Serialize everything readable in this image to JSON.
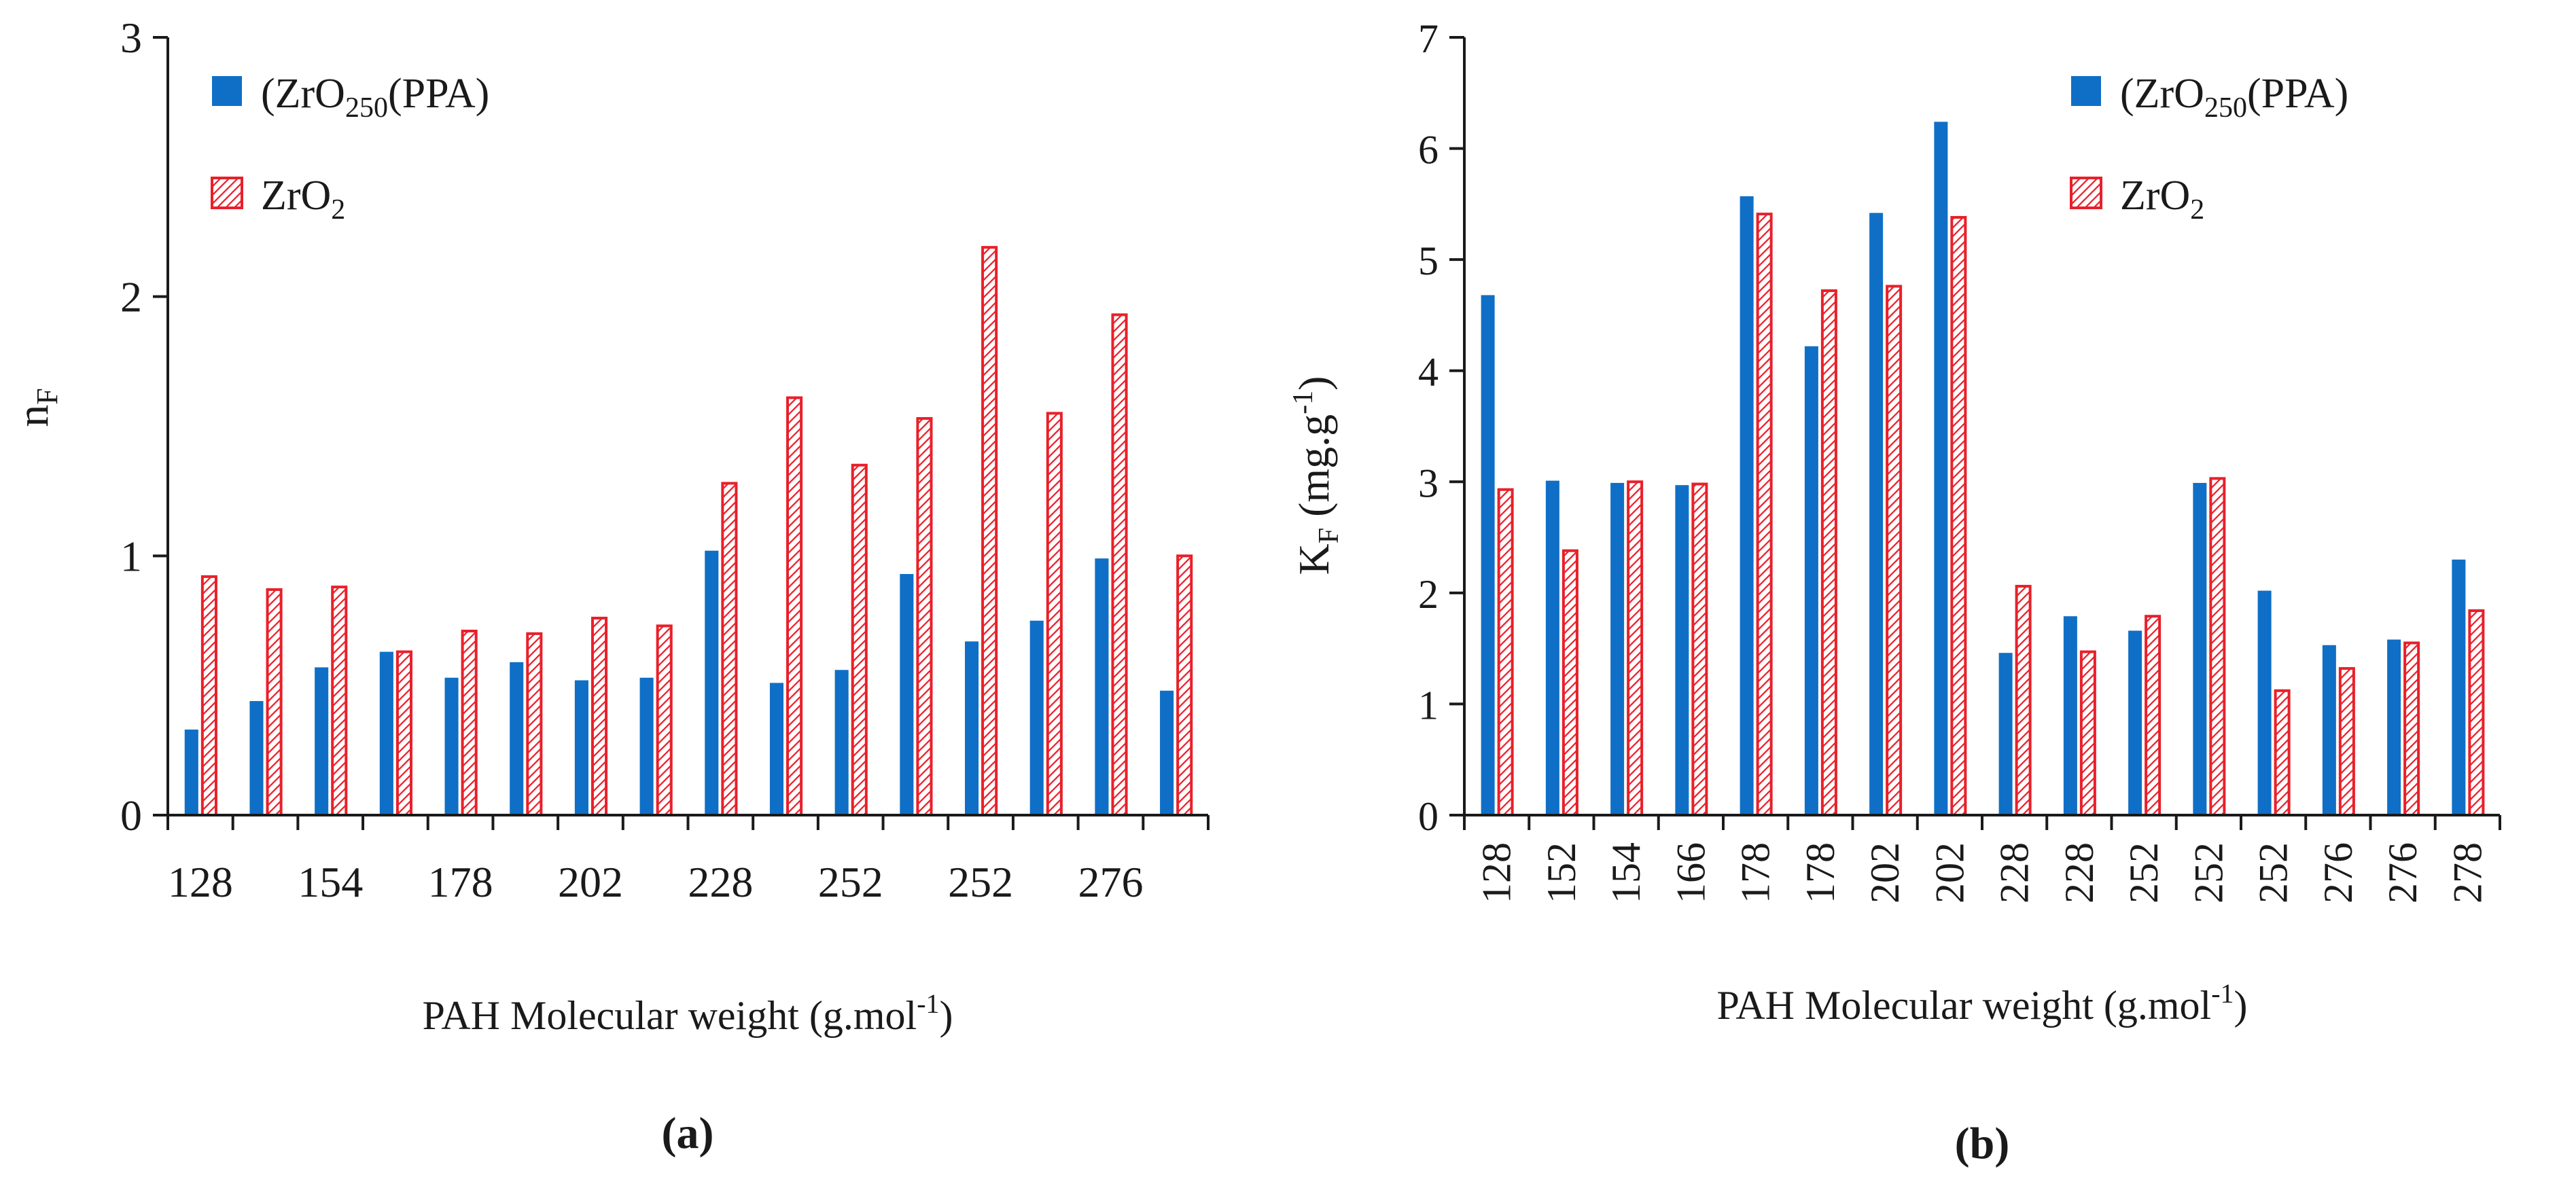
{
  "colors": {
    "series_a": "#0f6fc6",
    "series_b_edge": "#e8202a",
    "series_b_hatch": "#e8202a",
    "axis": "#1a1a1a"
  },
  "legend": [
    {
      "text": "(ZrO",
      "sub": "2",
      "subsub": "50",
      "tail": "(PPA)"
    },
    {
      "text": "ZrO",
      "sub": "2"
    }
  ],
  "chart_data": [
    {
      "type": "bar",
      "panel_label": "(a)",
      "ylabel": {
        "main": "n",
        "sub": "F"
      },
      "xlabel": {
        "main": "PAH Molecular weight (g.mol",
        "sup": "-1",
        "tail": ")"
      },
      "ylim": [
        0,
        3
      ],
      "yticks": [
        "0",
        "1",
        "2",
        "3"
      ],
      "categories": [
        "128",
        "",
        "154",
        "",
        "178",
        "",
        "202",
        "",
        "228",
        "",
        "252",
        "",
        "252",
        "",
        "276",
        ""
      ],
      "series": [
        {
          "name": "(ZrO2)50(PPA)",
          "values": [
            0.33,
            0.44,
            0.57,
            0.63,
            0.53,
            0.59,
            0.52,
            0.53,
            1.02,
            0.51,
            0.56,
            0.93,
            0.67,
            0.75,
            0.99,
            0.48
          ]
        },
        {
          "name": "ZrO2",
          "values": [
            0.92,
            0.87,
            0.88,
            0.63,
            0.71,
            0.7,
            0.76,
            0.73,
            1.28,
            1.61,
            1.35,
            1.53,
            2.19,
            1.55,
            1.93,
            1.0
          ]
        }
      ],
      "legend_position": "top-left"
    },
    {
      "type": "bar",
      "panel_label": "(b)",
      "ylabel": {
        "main": "K",
        "sub": "F",
        "unit": " (mg.g",
        "sup": "-1",
        "tail": ")"
      },
      "xlabel": {
        "main": "PAH Molecular weight (g.mol",
        "sup": "-1",
        "tail": ")"
      },
      "ylim": [
        0,
        7
      ],
      "yticks": [
        "0",
        "1",
        "2",
        "3",
        "4",
        "5",
        "6",
        "7"
      ],
      "categories": [
        "128",
        "152",
        "154",
        "166",
        "178",
        "178",
        "202",
        "202",
        "228",
        "228",
        "252",
        "252",
        "252",
        "276",
        "276",
        "278"
      ],
      "series": [
        {
          "name": "(ZrO2)50(PPA)",
          "values": [
            4.68,
            3.01,
            2.99,
            2.97,
            5.57,
            4.22,
            5.42,
            6.24,
            1.46,
            1.79,
            1.66,
            2.99,
            2.02,
            1.53,
            1.58,
            2.3
          ]
        },
        {
          "name": "ZrO2",
          "values": [
            2.93,
            2.38,
            3.0,
            2.98,
            5.41,
            4.72,
            4.76,
            5.38,
            2.06,
            1.47,
            1.79,
            3.03,
            1.12,
            1.32,
            1.55,
            1.84
          ]
        }
      ],
      "legend_position": "top-right"
    }
  ]
}
